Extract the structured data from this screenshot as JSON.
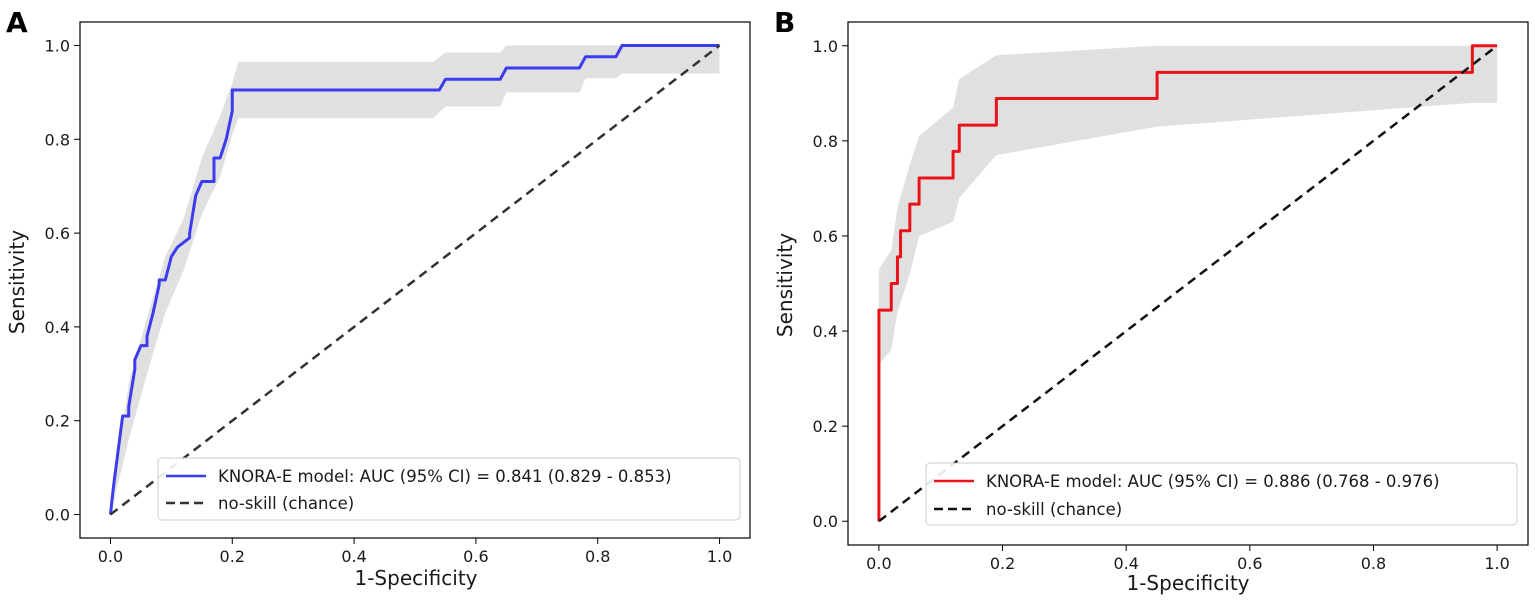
{
  "figure": {
    "background": "#ffffff"
  },
  "chart_data": [
    {
      "type": "line",
      "panel_label": "A",
      "xlabel": "1-Specificity",
      "ylabel": "Sensitivity",
      "xlim": [
        -0.05,
        1.05
      ],
      "ylim": [
        -0.05,
        1.05
      ],
      "xticks": [
        0.0,
        0.2,
        0.4,
        0.6,
        0.8,
        1.0
      ],
      "yticks": [
        0.0,
        0.2,
        0.4,
        0.6,
        0.8,
        1.0
      ],
      "xtick_labels": [
        "0.0",
        "0.2",
        "0.4",
        "0.6",
        "0.8",
        "1.0"
      ],
      "ytick_labels": [
        "0.0",
        "0.2",
        "0.4",
        "0.6",
        "0.8",
        "1.0"
      ],
      "legend_position": "bottom-right",
      "series": [
        {
          "name": "KNORA-E model: AUC (95% CI) = 0.841 (0.829 - 0.853)",
          "color": "#3b3bf0",
          "dash": "solid",
          "x": [
            0.0,
            0.005,
            0.01,
            0.015,
            0.02,
            0.03,
            0.03,
            0.04,
            0.04,
            0.05,
            0.06,
            0.06,
            0.07,
            0.08,
            0.08,
            0.09,
            0.1,
            0.11,
            0.11,
            0.13,
            0.13,
            0.14,
            0.15,
            0.17,
            0.17,
            0.18,
            0.19,
            0.2,
            0.2,
            0.54,
            0.55,
            0.64,
            0.65,
            0.77,
            0.78,
            0.83,
            0.84,
            1.0
          ],
          "y": [
            0.0,
            0.06,
            0.11,
            0.16,
            0.21,
            0.21,
            0.23,
            0.31,
            0.33,
            0.36,
            0.36,
            0.38,
            0.43,
            0.49,
            0.5,
            0.5,
            0.55,
            0.57,
            0.57,
            0.59,
            0.6,
            0.68,
            0.71,
            0.71,
            0.76,
            0.76,
            0.8,
            0.86,
            0.905,
            0.905,
            0.928,
            0.928,
            0.952,
            0.952,
            0.976,
            0.976,
            1.0,
            1.0
          ]
        },
        {
          "name": "no-skill (chance)",
          "color": "#333333",
          "dash": "dashed",
          "x": [
            0.0,
            1.0
          ],
          "y": [
            0.0,
            1.0
          ]
        }
      ],
      "ci_band": {
        "color": "#d6d6d6",
        "x": [
          0.0,
          0.03,
          0.06,
          0.09,
          0.12,
          0.15,
          0.18,
          0.2,
          0.21,
          0.53,
          0.55,
          0.64,
          0.65,
          0.77,
          0.78,
          0.83,
          0.84,
          1.0
        ],
        "upper": [
          0.0,
          0.28,
          0.42,
          0.55,
          0.63,
          0.76,
          0.85,
          0.92,
          0.965,
          0.965,
          0.985,
          0.985,
          1.0,
          1.0,
          1.0,
          1.0,
          1.0,
          1.0
        ],
        "lower": [
          0.0,
          0.16,
          0.3,
          0.43,
          0.52,
          0.64,
          0.72,
          0.81,
          0.845,
          0.845,
          0.87,
          0.87,
          0.9,
          0.9,
          0.93,
          0.93,
          0.94,
          0.94
        ]
      }
    },
    {
      "type": "line",
      "panel_label": "B",
      "xlabel": "1-Specificity",
      "ylabel": "Sensitivity",
      "xlim": [
        -0.05,
        1.05
      ],
      "ylim": [
        -0.05,
        1.05
      ],
      "xticks": [
        0.0,
        0.2,
        0.4,
        0.6,
        0.8,
        1.0
      ],
      "yticks": [
        0.0,
        0.2,
        0.4,
        0.6,
        0.8,
        1.0
      ],
      "xtick_labels": [
        "0.0",
        "0.2",
        "0.4",
        "0.6",
        "0.8",
        "1.0"
      ],
      "ytick_labels": [
        "0.0",
        "0.2",
        "0.4",
        "0.6",
        "0.8",
        "1.0"
      ],
      "legend_position": "bottom-right",
      "series": [
        {
          "name": "KNORA-E model: AUC (95% CI) = 0.886 (0.768 - 0.976)",
          "color": "#e8141a",
          "dash": "solid",
          "x": [
            0.0,
            0.0,
            0.02,
            0.02,
            0.03,
            0.03,
            0.035,
            0.035,
            0.05,
            0.05,
            0.065,
            0.065,
            0.12,
            0.12,
            0.13,
            0.13,
            0.19,
            0.19,
            0.45,
            0.45,
            0.96,
            0.96,
            1.0
          ],
          "y": [
            0.0,
            0.444,
            0.444,
            0.5,
            0.5,
            0.556,
            0.556,
            0.611,
            0.611,
            0.667,
            0.667,
            0.722,
            0.722,
            0.778,
            0.778,
            0.833,
            0.833,
            0.889,
            0.889,
            0.944,
            0.944,
            1.0,
            1.0
          ]
        },
        {
          "name": "no-skill (chance)",
          "color": "#111111",
          "dash": "dashed",
          "x": [
            0.0,
            1.0
          ],
          "y": [
            0.0,
            1.0
          ]
        }
      ],
      "ci_band": {
        "color": "#d6d6d6",
        "x": [
          0.0,
          0.02,
          0.03,
          0.05,
          0.065,
          0.12,
          0.13,
          0.19,
          0.45,
          0.96,
          1.0
        ],
        "upper": [
          0.53,
          0.57,
          0.66,
          0.75,
          0.81,
          0.87,
          0.93,
          0.98,
          1.0,
          1.0,
          1.0
        ],
        "lower": [
          0.33,
          0.36,
          0.44,
          0.52,
          0.6,
          0.63,
          0.68,
          0.77,
          0.83,
          0.88,
          0.88
        ]
      }
    }
  ]
}
